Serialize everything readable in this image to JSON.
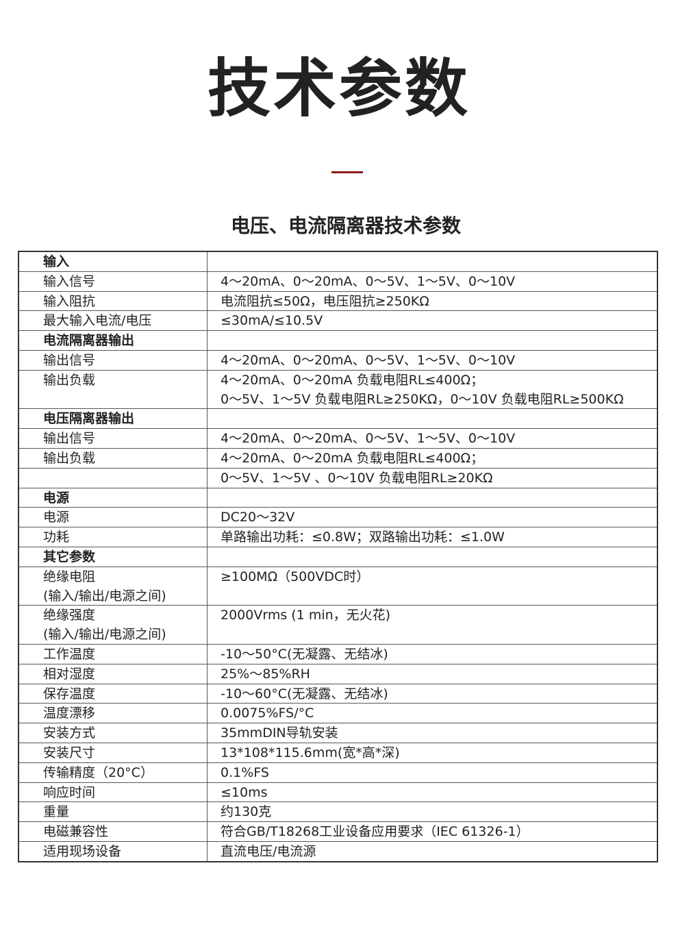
{
  "header": {
    "title": "技术参数",
    "subtitle": "电压、电流隔离器技术参数"
  },
  "table": {
    "sections": [
      {
        "title": "输入",
        "rows": [
          {
            "label": [
              "输入信号"
            ],
            "value": [
              "4～20mA、0～20mA、0～5V、1～5V、0～10V"
            ]
          },
          {
            "label": [
              "输入阻抗"
            ],
            "value": [
              "电流阻抗≤50Ω，电压阻抗≥250KΩ"
            ]
          },
          {
            "label": [
              "最大输入电流/电压"
            ],
            "value": [
              "≤30mA/≤10.5V"
            ]
          }
        ]
      },
      {
        "title": "电流隔离器输出",
        "rows": [
          {
            "label": [
              "输出信号"
            ],
            "value": [
              "4～20mA、0～20mA、0～5V、1～5V、0～10V"
            ]
          },
          {
            "label": [
              "输出负载"
            ],
            "value": [
              "4～20mA、0～20mA 负载电阻RL≤400Ω；",
              "0～5V、1～5V 负载电阻RL≥250KΩ，0～10V 负载电阻RL≥500KΩ"
            ]
          }
        ]
      },
      {
        "title": "电压隔离器输出",
        "rows": [
          {
            "label": [
              "输出信号"
            ],
            "value": [
              "4～20mA、0～20mA、0～5V、1～5V、0～10V"
            ]
          },
          {
            "label": [
              "输出负载"
            ],
            "value": [
              "4～20mA、0～20mA 负载电阻RL≤400Ω；"
            ]
          },
          {
            "label": [],
            "value": [
              "0～5V、1～5V 、0～10V 负载电阻RL≥20KΩ"
            ]
          }
        ]
      },
      {
        "title": "电源",
        "rows": [
          {
            "label": [
              "电源"
            ],
            "value": [
              "DC20～32V"
            ]
          },
          {
            "label": [
              "功耗"
            ],
            "value": [
              "单路输出功耗：≤0.8W；双路输出功耗：≤1.0W"
            ]
          }
        ]
      },
      {
        "title": "其它参数",
        "rows": [
          {
            "label": [
              "绝缘电阻",
              "(输入/输出/电源之间)"
            ],
            "value": [
              "≥100MΩ（500VDC时）"
            ]
          },
          {
            "label": [
              "绝缘强度",
              "(输入/输出/电源之间)"
            ],
            "value": [
              "2000Vrms (1 min，无火花)"
            ]
          },
          {
            "label": [
              "工作温度"
            ],
            "value": [
              "-10～50°C(无凝露、无结冰)"
            ]
          },
          {
            "label": [
              "相对湿度"
            ],
            "value": [
              "25%～85%RH"
            ]
          },
          {
            "label": [
              "保存温度"
            ],
            "value": [
              "-10～60°C(无凝露、无结冰)"
            ]
          },
          {
            "label": [
              "温度漂移"
            ],
            "value": [
              "0.0075%FS/°C"
            ]
          },
          {
            "label": [
              "安装方式"
            ],
            "value": [
              "35mmDIN导轨安装"
            ]
          },
          {
            "label": [
              "安装尺寸"
            ],
            "value": [
              "13*108*115.6mm(宽*高*深)"
            ]
          },
          {
            "label": [
              "传输精度（20°C）"
            ],
            "value": [
              "0.1%FS"
            ]
          },
          {
            "label": [
              "响应时间"
            ],
            "value": [
              "≤10ms"
            ]
          },
          {
            "label": [
              "重量"
            ],
            "value": [
              "约130克"
            ]
          },
          {
            "label": [
              "电磁兼容性"
            ],
            "value": [
              "符合GB/T18268工业设备应用要求（IEC 61326-1）"
            ]
          },
          {
            "label": [
              "适用现场设备"
            ],
            "value": [
              "直流电压/电流源"
            ]
          }
        ]
      }
    ]
  }
}
